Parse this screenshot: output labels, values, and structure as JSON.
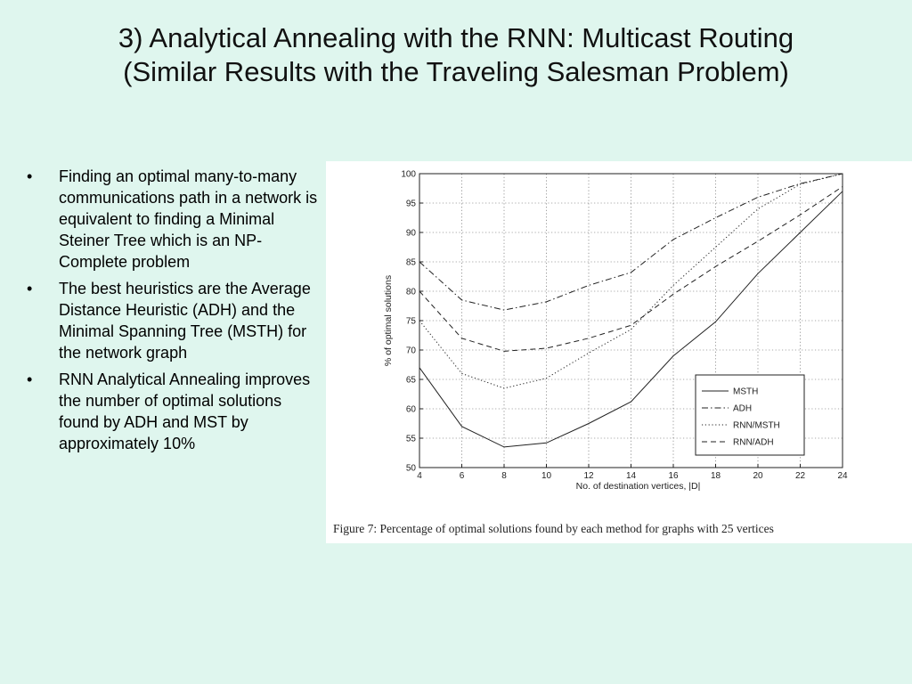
{
  "slide": {
    "title_line1": "3) Analytical Annealing with the RNN: Multicast Routing",
    "title_line2": "(Similar Results with the Traveling Salesman Problem)",
    "bullets": [
      "Finding an optimal many-to-many communications path in a network is equivalent to finding a Minimal Steiner Tree which is an NP-Complete problem",
      "The best heuristics are the Average Distance Heuristic (ADH) and the Minimal Spanning Tree (MSTH) for the network graph",
      "RNN Analytical Annealing improves the number of optimal solutions found by ADH and MST by approximately 10%"
    ],
    "bullet_symbol": "•"
  },
  "figure": {
    "caption": "Figure 7:  Percentage of optimal solutions found by each method for graphs with 25 vertices"
  },
  "chart_data": {
    "type": "line",
    "xlabel": "No. of destination vertices, |D|",
    "ylabel": "% of optimal solutions",
    "xlim": [
      4,
      24
    ],
    "ylim": [
      50,
      100
    ],
    "xticks": [
      4,
      6,
      8,
      10,
      12,
      14,
      16,
      18,
      20,
      22,
      24
    ],
    "yticks": [
      50,
      55,
      60,
      65,
      70,
      75,
      80,
      85,
      90,
      95,
      100
    ],
    "grid": true,
    "legend_position": "lower-right",
    "x": [
      4,
      6,
      8,
      10,
      12,
      14,
      16,
      18,
      20,
      22,
      24
    ],
    "series": [
      {
        "name": "MSTH",
        "style": "solid",
        "values": [
          67,
          57,
          53.5,
          54.2,
          57.5,
          61.2,
          69,
          74.8,
          83,
          90,
          97
        ]
      },
      {
        "name": "ADH",
        "style": "dashdot",
        "values": [
          85,
          78.5,
          76.8,
          78.2,
          81,
          83.2,
          88.8,
          92.5,
          96,
          98.3,
          100
        ]
      },
      {
        "name": "RNN/MSTH",
        "style": "dotted",
        "values": [
          75,
          66,
          63.5,
          65.2,
          69.5,
          73.5,
          81,
          87.5,
          94,
          98.2,
          100
        ]
      },
      {
        "name": "RNN/ADH",
        "style": "dashed",
        "values": [
          80,
          72,
          69.8,
          70.3,
          72,
          74.2,
          79.5,
          84.2,
          88.5,
          93,
          97.8
        ]
      }
    ]
  }
}
